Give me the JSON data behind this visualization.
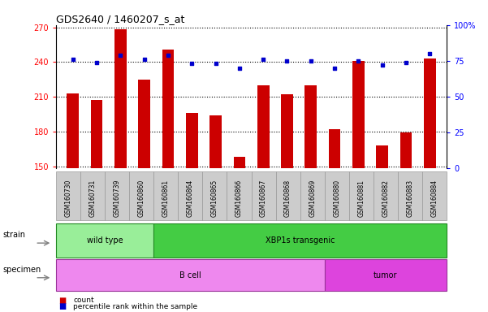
{
  "title": "GDS2640 / 1460207_s_at",
  "samples": [
    "GSM160730",
    "GSM160731",
    "GSM160739",
    "GSM160860",
    "GSM160861",
    "GSM160864",
    "GSM160865",
    "GSM160866",
    "GSM160867",
    "GSM160868",
    "GSM160869",
    "GSM160880",
    "GSM160881",
    "GSM160882",
    "GSM160883",
    "GSM160884"
  ],
  "counts": [
    213,
    207,
    268,
    225,
    251,
    196,
    194,
    158,
    220,
    212,
    220,
    182,
    241,
    168,
    179,
    243
  ],
  "percentiles": [
    76,
    74,
    79,
    76,
    79,
    73,
    73,
    70,
    76,
    75,
    75,
    70,
    75,
    72,
    74,
    80
  ],
  "ylim_left": [
    148,
    272
  ],
  "ylim_right": [
    0,
    100
  ],
  "yticks_left": [
    150,
    180,
    210,
    240,
    270
  ],
  "yticks_right": [
    0,
    25,
    50,
    75,
    100
  ],
  "bar_color": "#cc0000",
  "dot_color": "#0000cc",
  "strain_groups": [
    {
      "label": "wild type",
      "start": 0,
      "end": 4
    },
    {
      "label": "XBP1s transgenic",
      "start": 4,
      "end": 16
    }
  ],
  "specimen_groups": [
    {
      "label": "B cell",
      "start": 0,
      "end": 11
    },
    {
      "label": "tumor",
      "start": 11,
      "end": 16
    }
  ],
  "strain_color_left": "#99ee99",
  "strain_color_right": "#44cc44",
  "strain_edge_color": "#228822",
  "specimen_color_left": "#ee88ee",
  "specimen_color_right": "#dd44dd",
  "specimen_edge_color": "#993399",
  "legend_items": [
    {
      "color": "#cc0000",
      "label": "count"
    },
    {
      "color": "#0000cc",
      "label": "percentile rank within the sample"
    }
  ],
  "xlabel_strain": "strain",
  "xlabel_specimen": "specimen",
  "xtick_bg_color": "#cccccc",
  "xtick_edge_color": "#999999"
}
